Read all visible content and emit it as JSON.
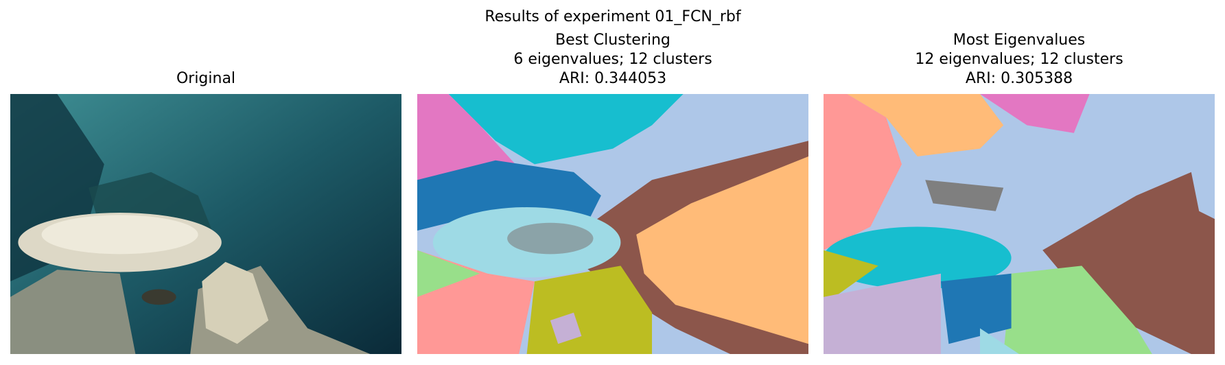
{
  "title": "Results of experiment 01_FCN_rbf",
  "panels": [
    {
      "title_lines": [
        "Original"
      ]
    },
    {
      "title_lines": [
        "Best Clustering",
        "6 eigenvalues; 12 clusters",
        "ARI: 0.344053"
      ]
    },
    {
      "title_lines": [
        "Most Eigenvalues",
        "12 eigenvalues; 12 clusters",
        "ARI: 0.305388"
      ]
    }
  ]
}
